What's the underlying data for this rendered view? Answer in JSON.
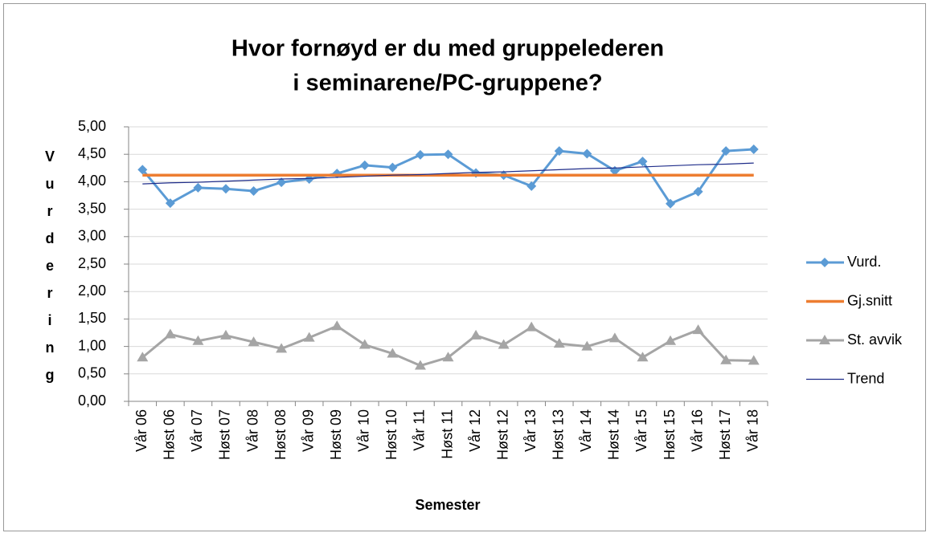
{
  "chart_data": {
    "type": "line",
    "title": [
      "Hvor fornøyd er du med gruppelederen",
      "i seminarene/PC-gruppene?"
    ],
    "x_label": "Semester",
    "y_label": "Vurdering",
    "categories": [
      "Vår 06",
      "Høst 06",
      "Vår 07",
      "Høst 07",
      "Vår 08",
      "Høst 08",
      "Vår 09",
      "Høst 09",
      "Vår 10",
      "Høst 10",
      "Vår 11",
      "Høst 11",
      "Vår 12",
      "Høst 12",
      "Vår 13",
      "Høst 13",
      "Vår 14",
      "Høst 14",
      "Vår 15",
      "Høst 15",
      "Vår 16",
      "Høst 17",
      "Vår 18"
    ],
    "series": [
      {
        "name": "Vurd.",
        "color": "#5b9bd5",
        "marker": "diamond",
        "line_width": 3,
        "values": [
          4.22,
          3.61,
          3.89,
          3.87,
          3.83,
          3.99,
          4.05,
          4.15,
          4.3,
          4.26,
          4.49,
          4.5,
          4.16,
          4.12,
          3.92,
          4.56,
          4.51,
          4.2,
          4.37,
          3.6,
          3.82,
          4.56,
          4.59
        ]
      },
      {
        "name": "Gj.snitt",
        "color": "#ed7d31",
        "marker": "none",
        "line_width": 3.5,
        "values": [
          4.12,
          4.12,
          4.12,
          4.12,
          4.12,
          4.12,
          4.12,
          4.12,
          4.12,
          4.12,
          4.12,
          4.12,
          4.12,
          4.12,
          4.12,
          4.12,
          4.12,
          4.12,
          4.12,
          4.12,
          4.12,
          4.12,
          4.12
        ]
      },
      {
        "name": "St. avvik",
        "color": "#a5a5a5",
        "marker": "triangle",
        "line_width": 3,
        "values": [
          0.8,
          1.22,
          1.1,
          1.2,
          1.08,
          0.96,
          1.16,
          1.37,
          1.03,
          0.87,
          0.65,
          0.8,
          1.2,
          1.03,
          1.35,
          1.05,
          1.0,
          1.15,
          0.8,
          1.1,
          1.3,
          0.75,
          0.74
        ]
      },
      {
        "name": "Trend",
        "color": "#1f2d8a",
        "marker": "none",
        "line_width": 1.2,
        "values": [
          3.96,
          3.98,
          3.99,
          4.01,
          4.03,
          4.05,
          4.06,
          4.08,
          4.1,
          4.12,
          4.13,
          4.15,
          4.17,
          4.18,
          4.2,
          4.22,
          4.24,
          4.25,
          4.27,
          4.29,
          4.31,
          4.32,
          4.34
        ]
      }
    ],
    "ylim": [
      0,
      5
    ],
    "yticks": [
      {
        "value": 0,
        "label": "0,00"
      },
      {
        "value": 0.5,
        "label": "0,50"
      },
      {
        "value": 1,
        "label": "1,00"
      },
      {
        "value": 1.5,
        "label": "1,50"
      },
      {
        "value": 2,
        "label": "2,00"
      },
      {
        "value": 2.5,
        "label": "2,50"
      },
      {
        "value": 3,
        "label": "3,00"
      },
      {
        "value": 3.5,
        "label": "3,50"
      },
      {
        "value": 4,
        "label": "4,00"
      },
      {
        "value": 4.5,
        "label": "4,50"
      },
      {
        "value": 5,
        "label": "5,00"
      }
    ],
    "grid": true,
    "legend": "right"
  }
}
